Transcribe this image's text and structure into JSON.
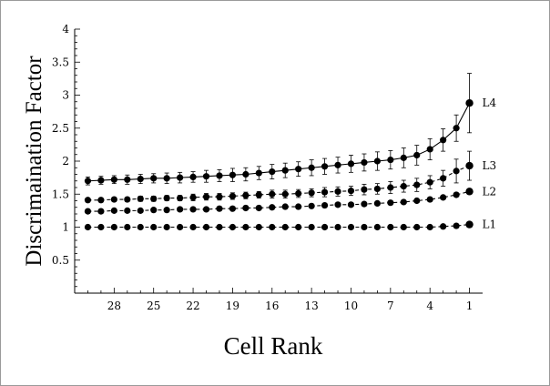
{
  "chart_data": {
    "type": "line",
    "title": "",
    "xlabel": "Cell Rank",
    "ylabel": "Discrimaination Factor",
    "xlim": [
      31,
      0
    ],
    "ylim": [
      0,
      4
    ],
    "x_reversed": true,
    "x_ticks": [
      28,
      25,
      22,
      19,
      16,
      13,
      10,
      7,
      4,
      1
    ],
    "y_ticks": [
      0.5,
      1,
      1.5,
      2,
      2.5,
      3,
      3.5,
      4
    ],
    "grid": false,
    "legend": "none (series labels at right end of lines)",
    "x": [
      30,
      29,
      28,
      27,
      26,
      25,
      24,
      23,
      22,
      21,
      20,
      19,
      18,
      17,
      16,
      15,
      14,
      13,
      12,
      11,
      10,
      9,
      8,
      7,
      6,
      5,
      4,
      3,
      2,
      1
    ],
    "series": [
      {
        "name": "L4",
        "line_style": "solid",
        "values": [
          1.7,
          1.71,
          1.72,
          1.72,
          1.73,
          1.74,
          1.74,
          1.75,
          1.76,
          1.77,
          1.78,
          1.79,
          1.8,
          1.82,
          1.84,
          1.86,
          1.88,
          1.9,
          1.92,
          1.94,
          1.96,
          1.98,
          2.0,
          2.02,
          2.05,
          2.09,
          2.18,
          2.32,
          2.5,
          2.88
        ],
        "errors": [
          0.06,
          0.06,
          0.06,
          0.07,
          0.07,
          0.07,
          0.08,
          0.08,
          0.08,
          0.09,
          0.09,
          0.1,
          0.1,
          0.1,
          0.11,
          0.11,
          0.11,
          0.12,
          0.12,
          0.12,
          0.13,
          0.13,
          0.14,
          0.14,
          0.15,
          0.15,
          0.16,
          0.17,
          0.2,
          0.45
        ]
      },
      {
        "name": "L3",
        "line_style": "dashed",
        "values": [
          1.41,
          1.41,
          1.42,
          1.42,
          1.43,
          1.43,
          1.44,
          1.44,
          1.45,
          1.46,
          1.46,
          1.47,
          1.48,
          1.49,
          1.5,
          1.5,
          1.51,
          1.52,
          1.53,
          1.54,
          1.55,
          1.57,
          1.58,
          1.6,
          1.62,
          1.64,
          1.68,
          1.74,
          1.85,
          1.93
        ],
        "errors": [
          0.03,
          0.03,
          0.03,
          0.03,
          0.04,
          0.04,
          0.04,
          0.04,
          0.05,
          0.05,
          0.05,
          0.05,
          0.05,
          0.05,
          0.06,
          0.06,
          0.06,
          0.06,
          0.07,
          0.07,
          0.07,
          0.08,
          0.08,
          0.09,
          0.09,
          0.1,
          0.1,
          0.12,
          0.18,
          0.22
        ]
      },
      {
        "name": "L2",
        "line_style": "dashed",
        "values": [
          1.24,
          1.24,
          1.25,
          1.25,
          1.25,
          1.26,
          1.26,
          1.27,
          1.27,
          1.27,
          1.28,
          1.28,
          1.29,
          1.29,
          1.3,
          1.31,
          1.31,
          1.32,
          1.33,
          1.34,
          1.34,
          1.35,
          1.36,
          1.37,
          1.38,
          1.4,
          1.42,
          1.45,
          1.49,
          1.54
        ],
        "errors": [
          0.01,
          0.01,
          0.01,
          0.01,
          0.01,
          0.01,
          0.01,
          0.01,
          0.01,
          0.01,
          0.01,
          0.01,
          0.01,
          0.01,
          0.01,
          0.01,
          0.01,
          0.01,
          0.01,
          0.01,
          0.02,
          0.02,
          0.02,
          0.02,
          0.02,
          0.02,
          0.02,
          0.02,
          0.03,
          0.04
        ]
      },
      {
        "name": "L1",
        "line_style": "dashed",
        "values": [
          1.0,
          1.0,
          1.0,
          1.0,
          1.0,
          1.0,
          1.0,
          1.0,
          1.0,
          1.0,
          1.0,
          1.0,
          1.0,
          1.0,
          1.0,
          1.0,
          1.0,
          1.0,
          1.0,
          1.0,
          1.0,
          1.0,
          1.0,
          1.0,
          1.0,
          1.0,
          1.0,
          1.01,
          1.02,
          1.04
        ],
        "errors": [
          0,
          0,
          0,
          0,
          0,
          0,
          0,
          0,
          0,
          0,
          0,
          0,
          0,
          0,
          0,
          0,
          0,
          0,
          0,
          0,
          0,
          0,
          0,
          0,
          0,
          0,
          0,
          0.01,
          0.01,
          0.02
        ]
      }
    ]
  }
}
